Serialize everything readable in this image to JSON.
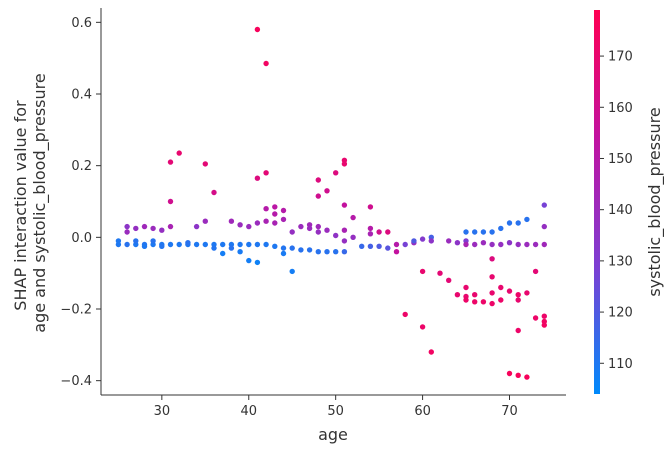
{
  "chart_data": {
    "type": "scatter",
    "title": "",
    "xlabel": "age",
    "ylabel": [
      "SHAP interaction value for",
      "age and systolic_blood_pressure"
    ],
    "xlim": [
      23,
      76.5
    ],
    "ylim": [
      -0.44,
      0.64
    ],
    "xticks": [
      "30",
      "40",
      "50",
      "60",
      "70"
    ],
    "yticks": [
      "−0.4",
      "−0.2",
      "0.0",
      "0.2",
      "0.4",
      "0.6"
    ],
    "xtick_values": [
      30,
      40,
      50,
      60,
      70
    ],
    "ytick_values": [
      -0.4,
      -0.2,
      0.0,
      0.2,
      0.4,
      0.6
    ],
    "grid": false,
    "colorbar": {
      "label": "systolic_blood_pressure",
      "range": [
        104,
        179
      ],
      "ticks": [
        "110",
        "120",
        "130",
        "140",
        "150",
        "160",
        "170"
      ],
      "tick_values": [
        110,
        120,
        130,
        140,
        150,
        160,
        170
      ],
      "colors": [
        "#008afb",
        "#7c3fd3",
        "#c013a1",
        "#ff0052"
      ]
    },
    "points": [
      {
        "x": 25,
        "y": -0.02,
        "c": 110
      },
      {
        "x": 25,
        "y": -0.01,
        "c": 110
      },
      {
        "x": 26,
        "y": -0.02,
        "c": 112
      },
      {
        "x": 26,
        "y": 0.03,
        "c": 135
      },
      {
        "x": 26,
        "y": 0.015,
        "c": 140
      },
      {
        "x": 27,
        "y": -0.02,
        "c": 110
      },
      {
        "x": 27,
        "y": -0.01,
        "c": 112
      },
      {
        "x": 27,
        "y": 0.025,
        "c": 138
      },
      {
        "x": 28,
        "y": -0.02,
        "c": 111
      },
      {
        "x": 28,
        "y": -0.025,
        "c": 110
      },
      {
        "x": 28,
        "y": 0.03,
        "c": 142
      },
      {
        "x": 29,
        "y": -0.02,
        "c": 110
      },
      {
        "x": 29,
        "y": -0.01,
        "c": 112
      },
      {
        "x": 29,
        "y": 0.025,
        "c": 140
      },
      {
        "x": 30,
        "y": -0.02,
        "c": 110
      },
      {
        "x": 30,
        "y": -0.025,
        "c": 111
      },
      {
        "x": 30,
        "y": 0.02,
        "c": 138
      },
      {
        "x": 31,
        "y": -0.02,
        "c": 110
      },
      {
        "x": 31,
        "y": 0.21,
        "c": 168
      },
      {
        "x": 31,
        "y": 0.1,
        "c": 160
      },
      {
        "x": 31,
        "y": 0.03,
        "c": 145
      },
      {
        "x": 32,
        "y": 0.235,
        "c": 170
      },
      {
        "x": 32,
        "y": -0.02,
        "c": 110
      },
      {
        "x": 33,
        "y": -0.02,
        "c": 110
      },
      {
        "x": 33,
        "y": -0.015,
        "c": 112
      },
      {
        "x": 34,
        "y": 0.03,
        "c": 135
      },
      {
        "x": 34,
        "y": -0.02,
        "c": 110
      },
      {
        "x": 35,
        "y": 0.205,
        "c": 168
      },
      {
        "x": 35,
        "y": 0.045,
        "c": 140
      },
      {
        "x": 35,
        "y": -0.02,
        "c": 110
      },
      {
        "x": 36,
        "y": 0.125,
        "c": 162
      },
      {
        "x": 36,
        "y": -0.02,
        "c": 110
      },
      {
        "x": 36,
        "y": -0.03,
        "c": 111
      },
      {
        "x": 37,
        "y": -0.02,
        "c": 110
      },
      {
        "x": 37,
        "y": -0.045,
        "c": 108
      },
      {
        "x": 38,
        "y": 0.045,
        "c": 142
      },
      {
        "x": 38,
        "y": -0.02,
        "c": 110
      },
      {
        "x": 38,
        "y": -0.03,
        "c": 112
      },
      {
        "x": 39,
        "y": 0.035,
        "c": 140
      },
      {
        "x": 39,
        "y": -0.02,
        "c": 110
      },
      {
        "x": 39,
        "y": -0.04,
        "c": 109
      },
      {
        "x": 40,
        "y": 0.03,
        "c": 140
      },
      {
        "x": 40,
        "y": -0.02,
        "c": 110
      },
      {
        "x": 40,
        "y": -0.065,
        "c": 108
      },
      {
        "x": 41,
        "y": 0.58,
        "c": 176
      },
      {
        "x": 41,
        "y": 0.165,
        "c": 165
      },
      {
        "x": 41,
        "y": 0.04,
        "c": 140
      },
      {
        "x": 41,
        "y": -0.02,
        "c": 110
      },
      {
        "x": 41,
        "y": -0.07,
        "c": 107
      },
      {
        "x": 42,
        "y": 0.485,
        "c": 174
      },
      {
        "x": 42,
        "y": 0.18,
        "c": 168
      },
      {
        "x": 42,
        "y": 0.08,
        "c": 150
      },
      {
        "x": 42,
        "y": 0.045,
        "c": 145
      },
      {
        "x": 42,
        "y": -0.02,
        "c": 110
      },
      {
        "x": 43,
        "y": 0.085,
        "c": 152
      },
      {
        "x": 43,
        "y": 0.065,
        "c": 150
      },
      {
        "x": 43,
        "y": 0.04,
        "c": 145
      },
      {
        "x": 43,
        "y": -0.025,
        "c": 110
      },
      {
        "x": 44,
        "y": 0.075,
        "c": 150
      },
      {
        "x": 44,
        "y": 0.05,
        "c": 145
      },
      {
        "x": 44,
        "y": -0.03,
        "c": 111
      },
      {
        "x": 44,
        "y": -0.045,
        "c": 109
      },
      {
        "x": 45,
        "y": 0.015,
        "c": 138
      },
      {
        "x": 45,
        "y": -0.03,
        "c": 112
      },
      {
        "x": 45,
        "y": -0.095,
        "c": 108
      },
      {
        "x": 46,
        "y": 0.03,
        "c": 140
      },
      {
        "x": 46,
        "y": -0.035,
        "c": 112
      },
      {
        "x": 47,
        "y": 0.035,
        "c": 142
      },
      {
        "x": 47,
        "y": 0.025,
        "c": 140
      },
      {
        "x": 47,
        "y": -0.035,
        "c": 112
      },
      {
        "x": 48,
        "y": 0.16,
        "c": 165
      },
      {
        "x": 48,
        "y": 0.115,
        "c": 160
      },
      {
        "x": 48,
        "y": 0.03,
        "c": 142
      },
      {
        "x": 48,
        "y": 0.015,
        "c": 138
      },
      {
        "x": 48,
        "y": -0.04,
        "c": 112
      },
      {
        "x": 49,
        "y": 0.13,
        "c": 160
      },
      {
        "x": 49,
        "y": 0.02,
        "c": 140
      },
      {
        "x": 49,
        "y": -0.04,
        "c": 112
      },
      {
        "x": 50,
        "y": 0.18,
        "c": 165
      },
      {
        "x": 50,
        "y": 0.005,
        "c": 136
      },
      {
        "x": 50,
        "y": -0.04,
        "c": 112
      },
      {
        "x": 51,
        "y": 0.215,
        "c": 170
      },
      {
        "x": 51,
        "y": 0.205,
        "c": 170
      },
      {
        "x": 51,
        "y": 0.09,
        "c": 155
      },
      {
        "x": 51,
        "y": 0.02,
        "c": 145
      },
      {
        "x": 51,
        "y": -0.01,
        "c": 138
      },
      {
        "x": 51,
        "y": -0.04,
        "c": 115
      },
      {
        "x": 52,
        "y": 0.055,
        "c": 150
      },
      {
        "x": 52,
        "y": 0.0,
        "c": 138
      },
      {
        "x": 53,
        "y": -0.025,
        "c": 115
      },
      {
        "x": 54,
        "y": 0.085,
        "c": 160
      },
      {
        "x": 54,
        "y": 0.025,
        "c": 150
      },
      {
        "x": 54,
        "y": 0.01,
        "c": 145
      },
      {
        "x": 54,
        "y": -0.025,
        "c": 118
      },
      {
        "x": 55,
        "y": 0.015,
        "c": 160
      },
      {
        "x": 55,
        "y": -0.025,
        "c": 120
      },
      {
        "x": 56,
        "y": 0.015,
        "c": 165
      },
      {
        "x": 56,
        "y": -0.03,
        "c": 122
      },
      {
        "x": 57,
        "y": -0.02,
        "c": 150
      },
      {
        "x": 57,
        "y": -0.04,
        "c": 155
      },
      {
        "x": 58,
        "y": -0.02,
        "c": 128
      },
      {
        "x": 58,
        "y": -0.215,
        "c": 172
      },
      {
        "x": 59,
        "y": -0.015,
        "c": 140
      },
      {
        "x": 59,
        "y": -0.01,
        "c": 120
      },
      {
        "x": 60,
        "y": -0.005,
        "c": 132
      },
      {
        "x": 60,
        "y": -0.095,
        "c": 170
      },
      {
        "x": 60,
        "y": -0.25,
        "c": 172
      },
      {
        "x": 61,
        "y": 0.0,
        "c": 118
      },
      {
        "x": 61,
        "y": -0.01,
        "c": 135
      },
      {
        "x": 61,
        "y": -0.32,
        "c": 174
      },
      {
        "x": 62,
        "y": -0.1,
        "c": 168
      },
      {
        "x": 63,
        "y": -0.01,
        "c": 140
      },
      {
        "x": 63,
        "y": -0.12,
        "c": 168
      },
      {
        "x": 64,
        "y": -0.015,
        "c": 135
      },
      {
        "x": 64,
        "y": -0.16,
        "c": 170
      },
      {
        "x": 65,
        "y": 0.015,
        "c": 112
      },
      {
        "x": 65,
        "y": -0.01,
        "c": 130
      },
      {
        "x": 65,
        "y": -0.02,
        "c": 145
      },
      {
        "x": 65,
        "y": -0.14,
        "c": 170
      },
      {
        "x": 65,
        "y": -0.165,
        "c": 170
      },
      {
        "x": 65,
        "y": -0.175,
        "c": 172
      },
      {
        "x": 66,
        "y": 0.015,
        "c": 112
      },
      {
        "x": 66,
        "y": -0.02,
        "c": 140
      },
      {
        "x": 66,
        "y": -0.16,
        "c": 170
      },
      {
        "x": 66,
        "y": -0.18,
        "c": 172
      },
      {
        "x": 67,
        "y": 0.015,
        "c": 112
      },
      {
        "x": 67,
        "y": -0.015,
        "c": 140
      },
      {
        "x": 67,
        "y": -0.18,
        "c": 172
      },
      {
        "x": 68,
        "y": 0.015,
        "c": 112
      },
      {
        "x": 68,
        "y": -0.02,
        "c": 138
      },
      {
        "x": 68,
        "y": -0.06,
        "c": 165
      },
      {
        "x": 68,
        "y": -0.11,
        "c": 170
      },
      {
        "x": 68,
        "y": -0.155,
        "c": 170
      },
      {
        "x": 68,
        "y": -0.185,
        "c": 172
      },
      {
        "x": 69,
        "y": 0.025,
        "c": 112
      },
      {
        "x": 69,
        "y": -0.02,
        "c": 138
      },
      {
        "x": 69,
        "y": -0.14,
        "c": 170
      },
      {
        "x": 69,
        "y": -0.175,
        "c": 172
      },
      {
        "x": 70,
        "y": 0.04,
        "c": 112
      },
      {
        "x": 70,
        "y": -0.015,
        "c": 135
      },
      {
        "x": 70,
        "y": -0.15,
        "c": 170
      },
      {
        "x": 70,
        "y": -0.38,
        "c": 176
      },
      {
        "x": 71,
        "y": 0.04,
        "c": 112
      },
      {
        "x": 71,
        "y": -0.02,
        "c": 138
      },
      {
        "x": 71,
        "y": -0.16,
        "c": 172
      },
      {
        "x": 71,
        "y": -0.175,
        "c": 170
      },
      {
        "x": 71,
        "y": -0.26,
        "c": 172
      },
      {
        "x": 71,
        "y": -0.385,
        "c": 176
      },
      {
        "x": 72,
        "y": 0.05,
        "c": 112
      },
      {
        "x": 72,
        "y": -0.02,
        "c": 140
      },
      {
        "x": 72,
        "y": -0.155,
        "c": 170
      },
      {
        "x": 72,
        "y": -0.39,
        "c": 176
      },
      {
        "x": 73,
        "y": -0.02,
        "c": 140
      },
      {
        "x": 73,
        "y": -0.095,
        "c": 168
      },
      {
        "x": 73,
        "y": -0.225,
        "c": 172
      },
      {
        "x": 74,
        "y": 0.09,
        "c": 128
      },
      {
        "x": 74,
        "y": 0.03,
        "c": 138
      },
      {
        "x": 74,
        "y": -0.02,
        "c": 142
      },
      {
        "x": 74,
        "y": -0.22,
        "c": 172
      },
      {
        "x": 74,
        "y": -0.235,
        "c": 174
      },
      {
        "x": 74,
        "y": -0.245,
        "c": 174
      }
    ]
  }
}
